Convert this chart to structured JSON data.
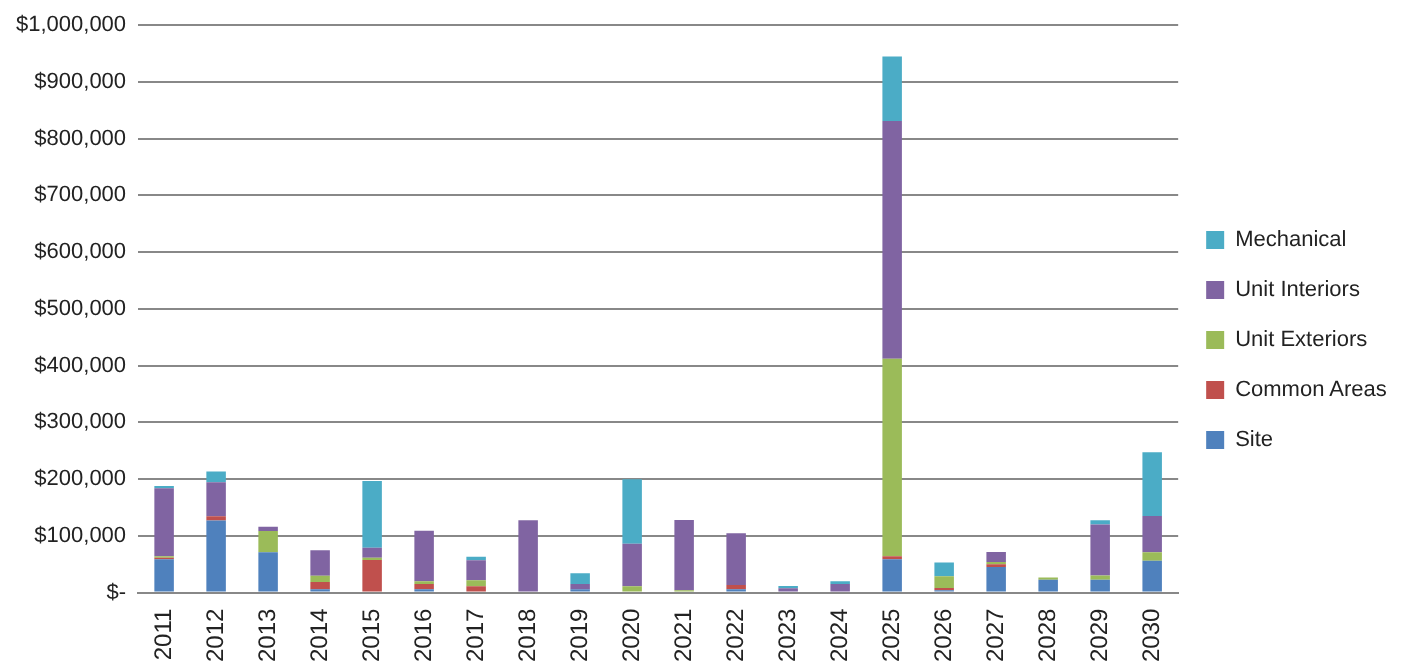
{
  "chart_data": {
    "type": "bar",
    "stacked": true,
    "categories": [
      "2011",
      "2012",
      "2013",
      "2014",
      "2015",
      "2016",
      "2017",
      "2018",
      "2019",
      "2020",
      "2021",
      "2022",
      "2023",
      "2024",
      "2025",
      "2026",
      "2027",
      "2028",
      "2029",
      "2030"
    ],
    "series": [
      {
        "name": "Site",
        "color": "#4f81bd",
        "values": [
          59000,
          127000,
          71000,
          6000,
          0,
          6000,
          0,
          0,
          6000,
          0,
          0,
          6000,
          0,
          0,
          59000,
          4000,
          45000,
          22500,
          22500,
          56000
        ]
      },
      {
        "name": "Common Areas",
        "color": "#c0504d",
        "values": [
          2500,
          7500,
          0,
          12500,
          57500,
          9000,
          11000,
          0,
          0,
          0,
          0,
          7500,
          0,
          0,
          5000,
          4000,
          5000,
          0,
          0,
          0
        ]
      },
      {
        "name": "Unit Exteriors",
        "color": "#9bbb59",
        "values": [
          2500,
          0,
          37500,
          11000,
          4000,
          5000,
          11000,
          0,
          0,
          11000,
          4000,
          0,
          0,
          0,
          348000,
          21000,
          4000,
          4000,
          7500,
          15000
        ]
      },
      {
        "name": "Unit Interiors",
        "color": "#8064a2",
        "values": [
          120000,
          60000,
          7500,
          45000,
          17500,
          89000,
          35000,
          127500,
          9000,
          75000,
          124000,
          91000,
          7500,
          15000,
          419000,
          0,
          17500,
          0,
          90000,
          64000
        ]
      },
      {
        "name": "Mechanical",
        "color": "#4bacc6",
        "values": [
          4000,
          19000,
          0,
          0,
          117500,
          0,
          6000,
          0,
          19000,
          114000,
          0,
          0,
          4000,
          5000,
          114000,
          24000,
          0,
          0,
          7500,
          112500
        ]
      }
    ],
    "ylim": [
      0,
      1000000
    ],
    "yticks": [
      {
        "value": 0,
        "label": "$-"
      },
      {
        "value": 100000,
        "label": "$100,000"
      },
      {
        "value": 200000,
        "label": "$200,000"
      },
      {
        "value": 300000,
        "label": "$300,000"
      },
      {
        "value": 400000,
        "label": "$400,000"
      },
      {
        "value": 500000,
        "label": "$500,000"
      },
      {
        "value": 600000,
        "label": "$600,000"
      },
      {
        "value": 700000,
        "label": "$700,000"
      },
      {
        "value": 800000,
        "label": "$800,000"
      },
      {
        "value": 900000,
        "label": "$900,000"
      },
      {
        "value": 1000000,
        "label": "$1,000,000"
      }
    ],
    "grid": "y",
    "legend": "right"
  }
}
